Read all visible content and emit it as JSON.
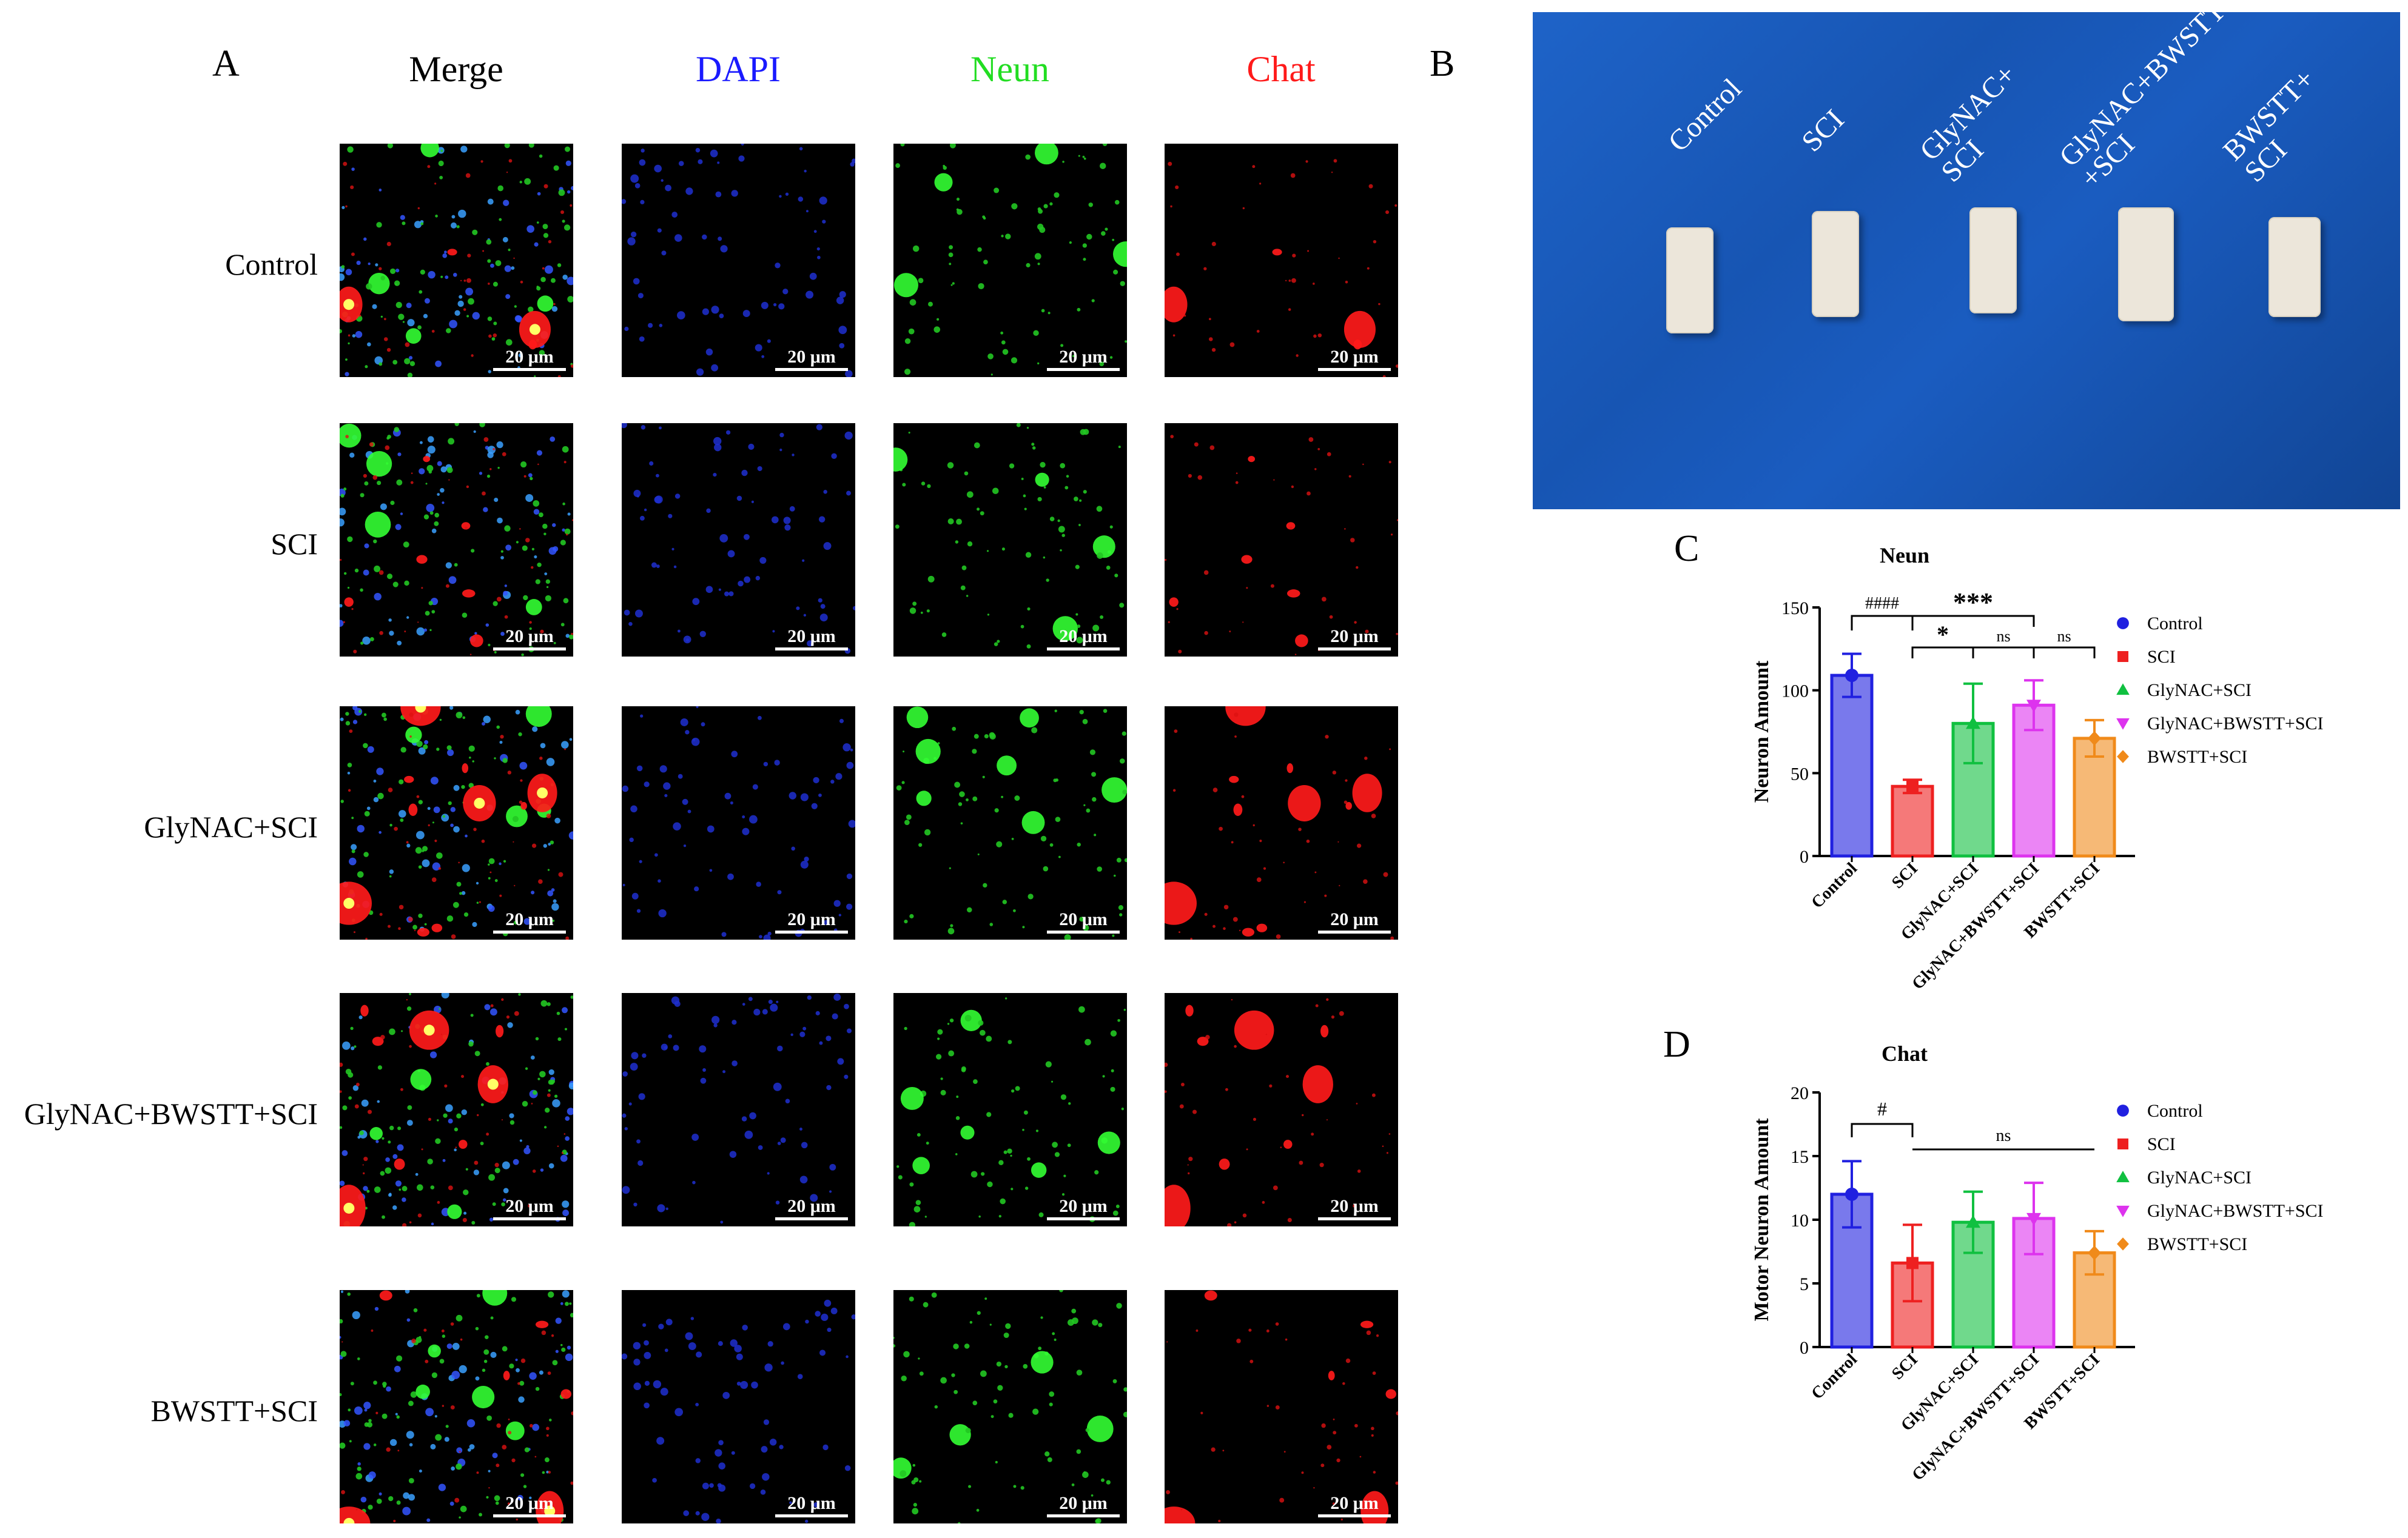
{
  "panels": {
    "a": "A",
    "b": "B",
    "c": "C",
    "d": "D"
  },
  "columns": [
    "Merge",
    "DAPI",
    "Neun",
    "Chat"
  ],
  "column_colors": [
    "#000000",
    "#1a1aff",
    "#22dd22",
    "#ff1a1a"
  ],
  "rows": [
    "Control",
    "SCI",
    "GlyNAC+SCI",
    "GlyNAC+BWSTT+SCI",
    "BWSTT+SCI"
  ],
  "scale_bar": "20 μm",
  "photo_labels": [
    "Control",
    "SCI",
    "GlyNAC+\nSCI",
    "GlyNAC+BWSTT\n+SCI",
    "BWSTT+\nSCI"
  ],
  "group_colors": [
    "#2020e0",
    "#ee2020",
    "#10c040",
    "#dd33ee",
    "#f08a1a"
  ],
  "chart_data": [
    {
      "type": "bar",
      "title": "Neun",
      "ylabel": "Neuron Amount",
      "ylim": [
        0,
        150
      ],
      "yticks": [
        0,
        50,
        100,
        150
      ],
      "categories": [
        "Control",
        "SCI",
        "GlyNAC+SCI",
        "GlyNAC+BWSTT+SCI",
        "BWSTT+SCI"
      ],
      "values": [
        109,
        42,
        80,
        91,
        71
      ],
      "errors": [
        13,
        4,
        24,
        15,
        11
      ],
      "legend": [
        "Control",
        "SCI",
        "GlyNAC+SCI",
        "GlyNAC+BWSTT+SCI",
        "BWSTT+SCI"
      ],
      "legend_position": "right",
      "annotations": [
        "####",
        "***",
        "*",
        "ns",
        "ns"
      ]
    },
    {
      "type": "bar",
      "title": "Chat",
      "ylabel": "Motor Neuron Amount",
      "ylim": [
        0,
        20
      ],
      "yticks": [
        0,
        5,
        10,
        15,
        20
      ],
      "categories": [
        "Control",
        "SCI",
        "GlyNAC+SCI",
        "GlyNAC+BWSTT+SCI",
        "BWSTT+SCI"
      ],
      "values": [
        12.0,
        6.6,
        9.8,
        10.1,
        7.4
      ],
      "errors": [
        2.6,
        3.0,
        2.4,
        2.8,
        1.7
      ],
      "legend": [
        "Control",
        "SCI",
        "GlyNAC+SCI",
        "GlyNAC+BWSTT+SCI",
        "BWSTT+SCI"
      ],
      "legend_position": "right",
      "annotations": [
        "#",
        "ns"
      ]
    }
  ]
}
